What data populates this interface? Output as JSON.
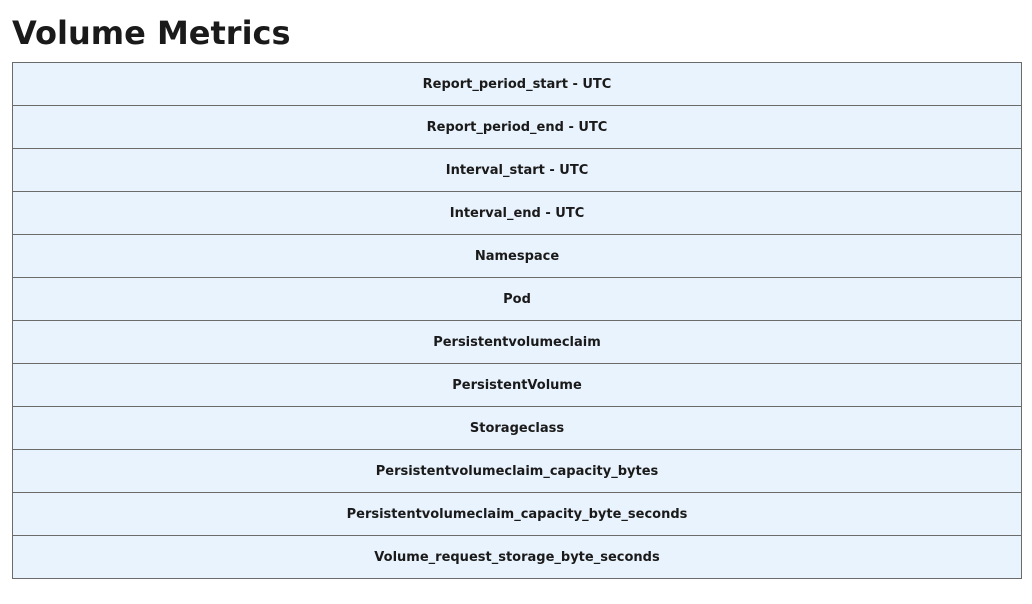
{
  "page": {
    "title": "Volume Metrics"
  },
  "table": {
    "rows": [
      "Report_period_start - UTC",
      "Report_period_end - UTC",
      "Interval_start - UTC",
      "Interval_end - UTC",
      "Namespace",
      "Pod",
      "Persistentvolumeclaim",
      "PersistentVolume",
      "Storageclass",
      "Persistentvolumeclaim_capacity_bytes",
      "Persistentvolumeclaim_capacity_byte_seconds",
      "Volume_request_storage_byte_seconds"
    ]
  },
  "colors": {
    "cell_background": "#e9f3fd",
    "cell_border": "#6b6b6b",
    "text": "#1a1a1a"
  }
}
